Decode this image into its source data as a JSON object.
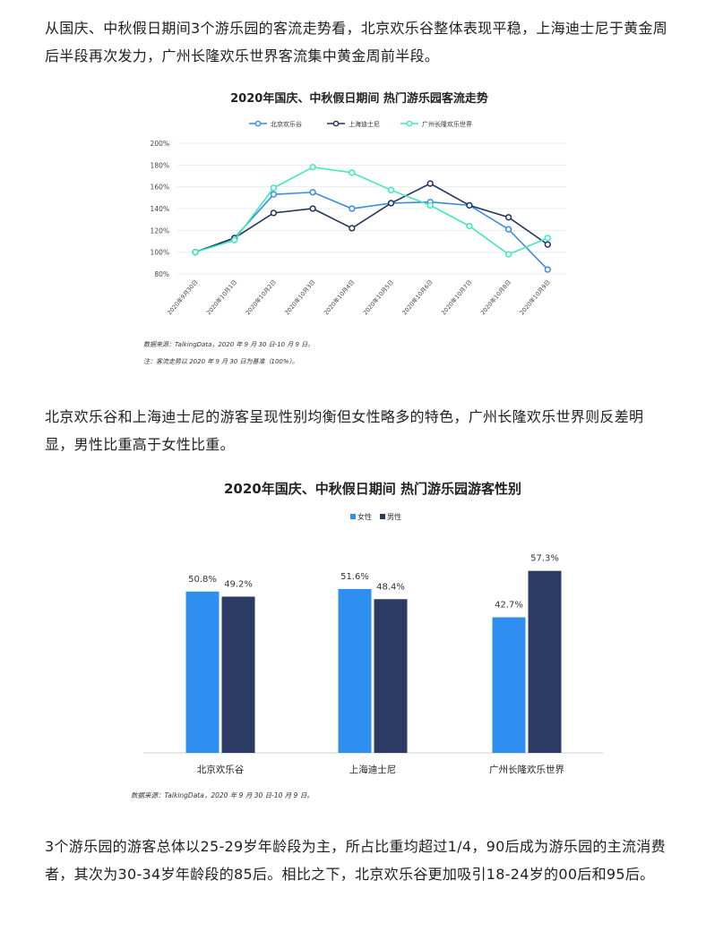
{
  "paragraphs": {
    "p1": "从国庆、中秋假日期间3个游乐园的客流走势看，北京欢乐谷整体表现平稳，上海迪士尼于黄金周后半段再次发力，广州长隆欢乐世界客流集中黄金周前半段。",
    "p2": "北京欢乐谷和上海迪士尼的游客呈现性别均衡但女性略多的特色，广州长隆欢乐世界则反差明显，男性比重高于女性比重。",
    "p3": "3个游乐园的游客总体以25-29岁年龄段为主，所占比重均超过1/4，90后成为游乐园的主流消费者，其次为30-34岁年龄段的85后。相比之下，北京欢乐谷更加吸引18-24岁的00后和95后。"
  },
  "colors": {
    "beijing": "#3b8be0",
    "shanghai": "#23355e",
    "guangzhou": "#3fe8b8",
    "female": "#2f8ff0",
    "male": "#2b3b63"
  },
  "chart_data": [
    {
      "type": "line",
      "title": "2020年国庆、中秋假日期间  热门游乐园客流走势",
      "x": [
        "2020年9月30日",
        "2020年10月1日",
        "2020年10月2日",
        "2020年10月3日",
        "2020年10月4日",
        "2020年10月5日",
        "2020年10月6日",
        "2020年10月7日",
        "2020年10月8日",
        "2020年10月9日"
      ],
      "yticks": [
        "200%",
        "180%",
        "160%",
        "140%",
        "120%",
        "100%",
        "80%"
      ],
      "ylim": [
        80,
        200
      ],
      "grid": true,
      "legend_position": "top",
      "series": [
        {
          "name": "北京欢乐谷",
          "values": [
            100,
            113,
            153,
            155,
            140,
            145,
            146,
            143,
            121,
            84
          ]
        },
        {
          "name": "上海迪士尼",
          "values": [
            100,
            113,
            136,
            140,
            122,
            145,
            163,
            143,
            132,
            107
          ]
        },
        {
          "name": "广州长隆欢乐世界",
          "values": [
            100,
            111,
            159,
            178,
            173,
            157,
            143,
            124,
            98,
            113
          ]
        }
      ],
      "notes": [
        "数据来源：TalkingData，2020 年 9 月 30 日-10 月 9 日。",
        "注：客流走势以 2020 年 9 月 30 日为基准（100%）。"
      ]
    },
    {
      "type": "bar",
      "title": "2020年国庆、中秋假日期间  热门游乐园游客性别",
      "categories": [
        "北京欢乐谷",
        "上海迪士尼",
        "广州长隆欢乐世界"
      ],
      "series": [
        {
          "name": "女性",
          "values": [
            50.8,
            51.6,
            42.7
          ],
          "labels": [
            "50.8%",
            "51.6%",
            "42.7%"
          ]
        },
        {
          "name": "男性",
          "values": [
            49.2,
            48.4,
            57.3
          ],
          "labels": [
            "49.2%",
            "48.4%",
            "57.3%"
          ]
        }
      ],
      "legend_position": "top",
      "grid": false,
      "ylim": [
        0,
        73
      ],
      "notes": [
        "数据来源：TalkingData，2020 年 9 月 30 日-10 月 9 日。"
      ]
    }
  ]
}
